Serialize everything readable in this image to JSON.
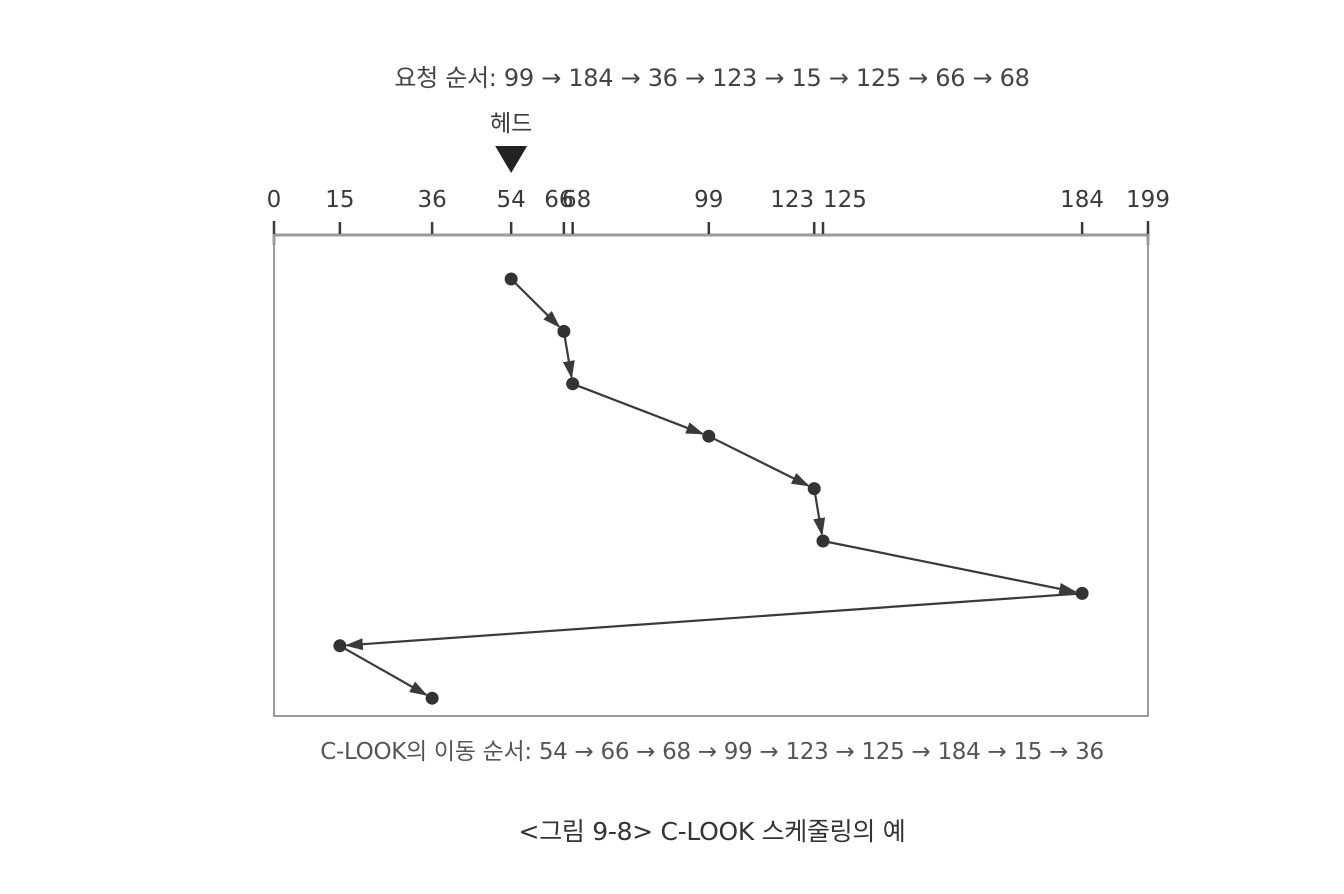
{
  "request_order_text": "요청 순서: 99 → 184 → 36 → 123 → 15 → 125 → 66 → 68",
  "head_label": "헤드",
  "movement_order_text": "C-LOOK의 이동 순서: 54 → 66 → 68 → 99 → 123 → 125 → 184 → 15 → 36",
  "caption": "<그림 9-8> C-LOOK 스케줄링의 예",
  "axis": {
    "min": 0,
    "max": 199,
    "ticks": [
      0,
      15,
      36,
      54,
      66,
      68,
      99,
      123,
      125,
      184,
      199
    ],
    "tick_labels": [
      "0",
      "15",
      "36",
      "54",
      "66",
      "68",
      "99",
      "123",
      "125",
      "184",
      "199"
    ]
  },
  "head_position": 54,
  "path": [
    54,
    66,
    68,
    99,
    123,
    125,
    184,
    15,
    36
  ],
  "colors": {
    "line": "#3a3a3a",
    "point": "#333333"
  }
}
